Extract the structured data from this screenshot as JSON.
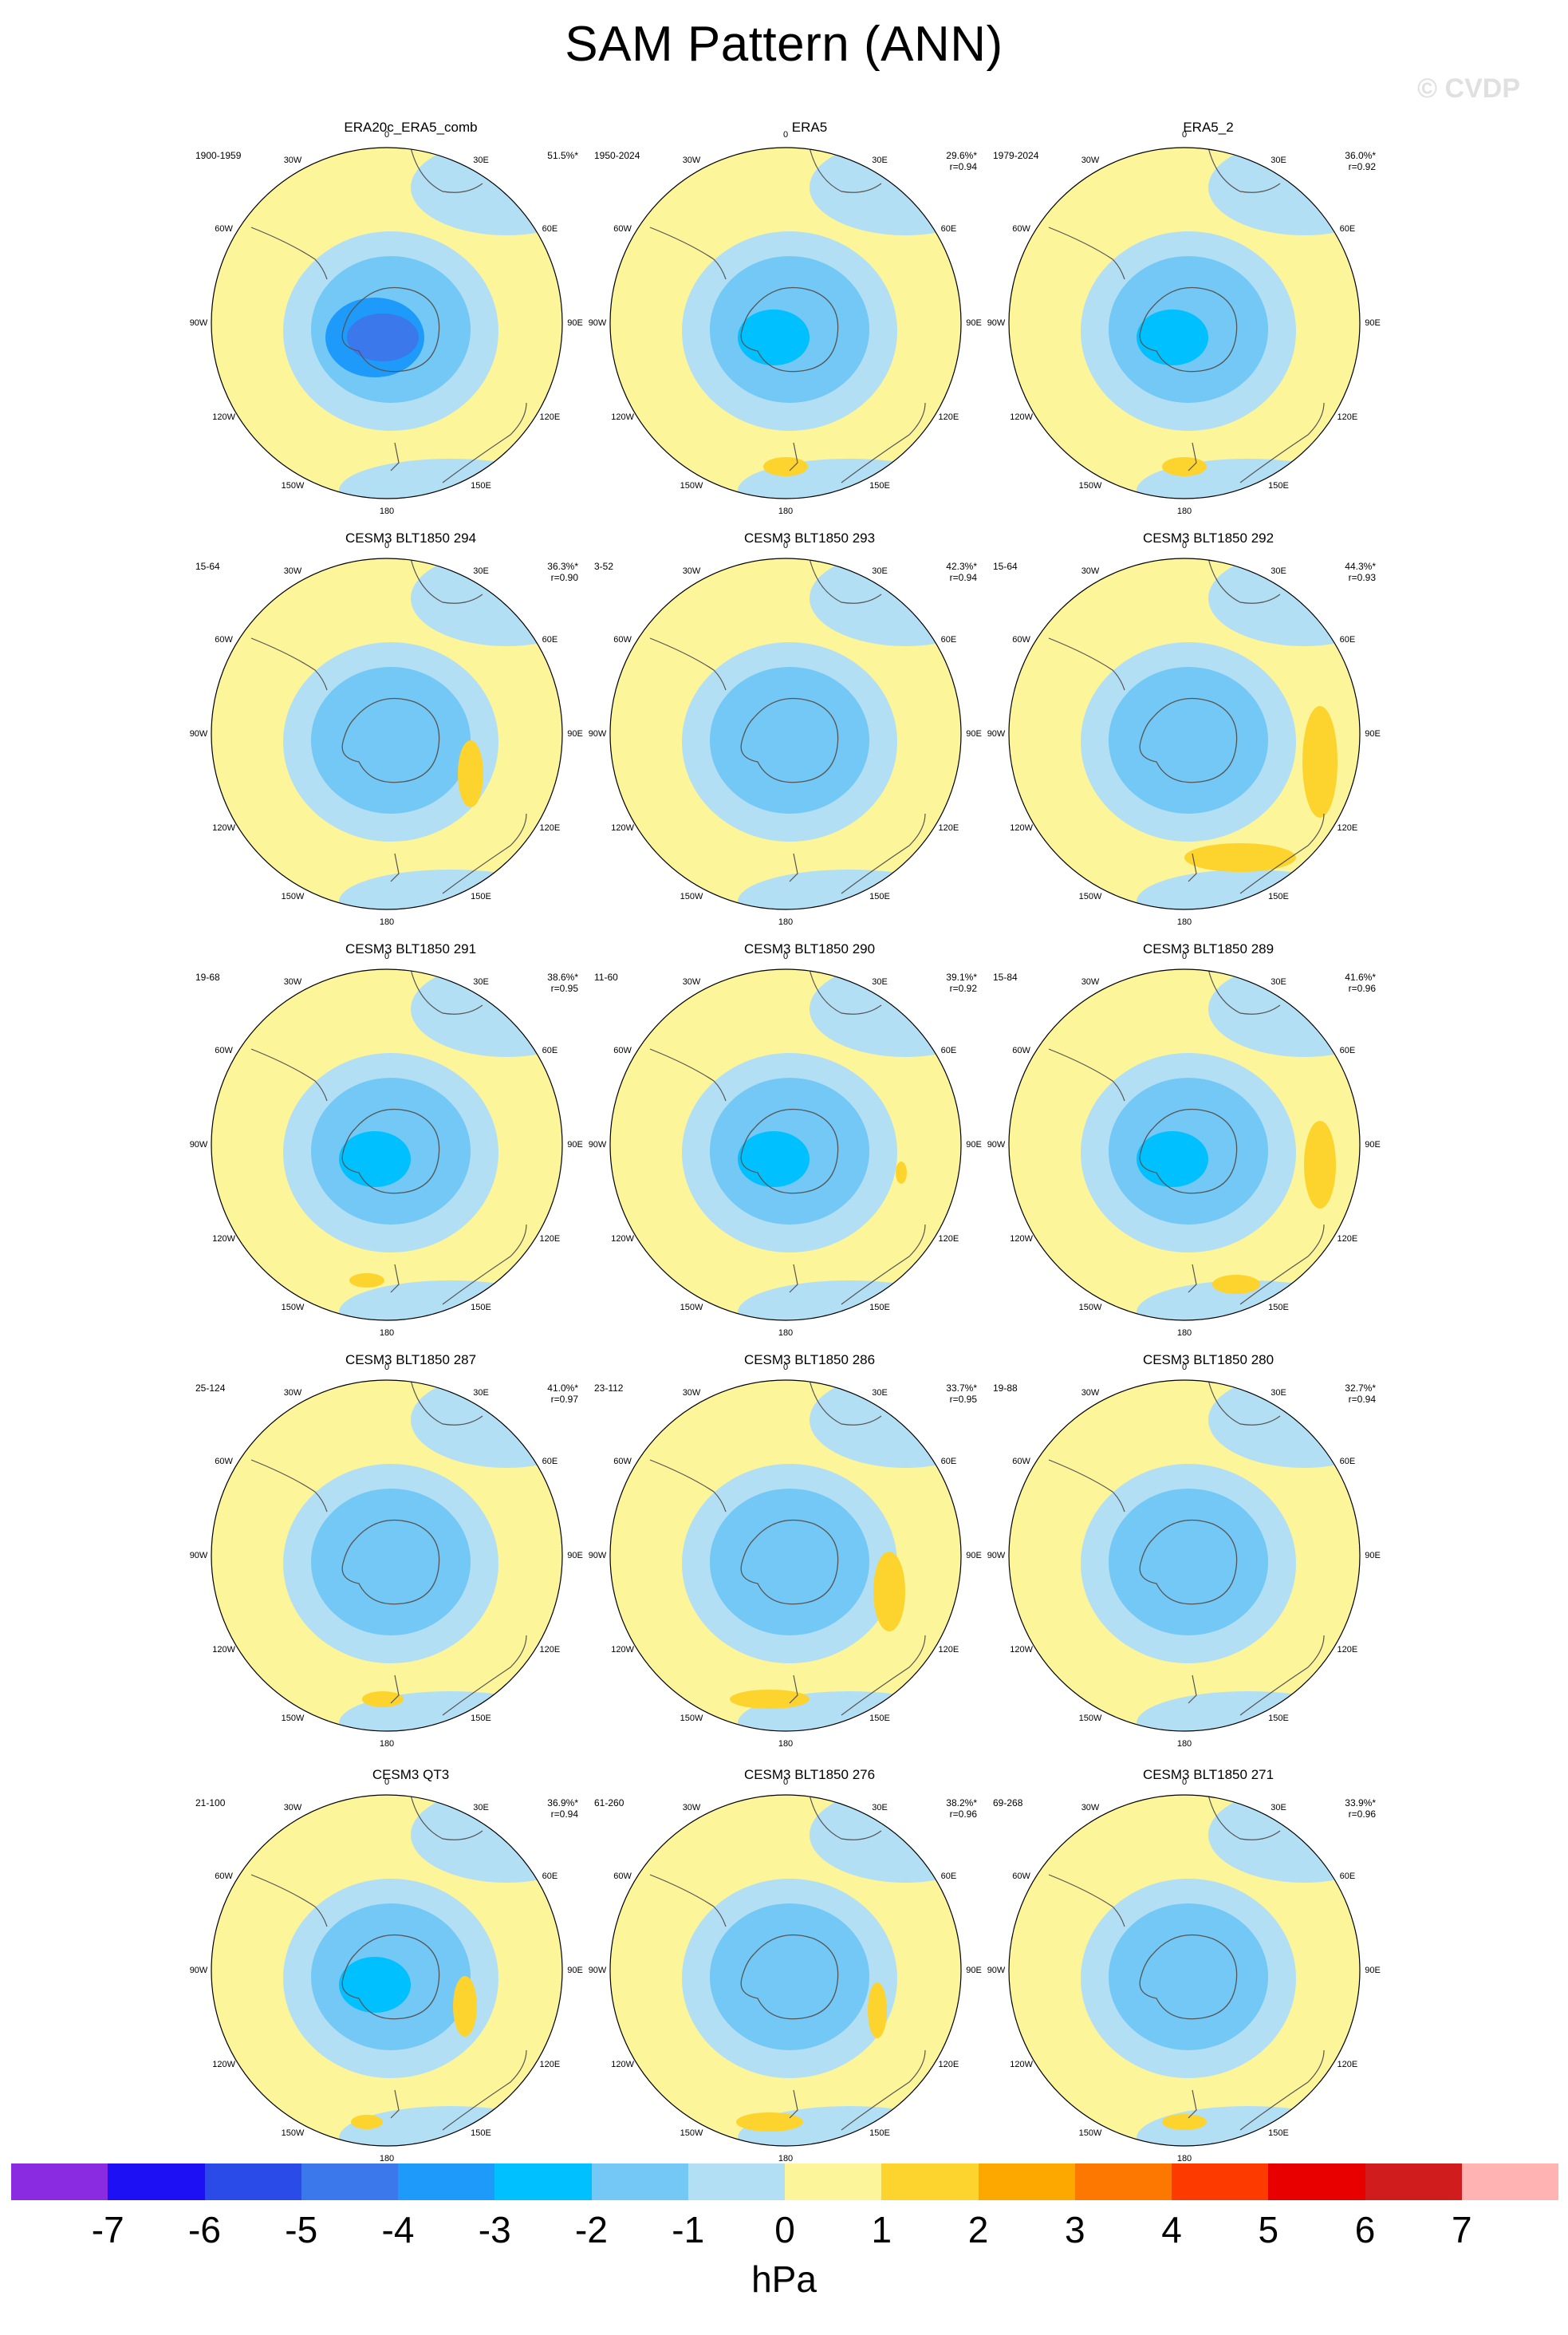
{
  "title": "SAM Pattern (ANN)",
  "watermark": "© CVDP",
  "lon_labels": {
    "l0": "0",
    "l30e": "30E",
    "l60e": "60E",
    "l90e": "90E",
    "l120e": "120E",
    "l150e": "150E",
    "l180": "180",
    "l150w": "150W",
    "l120w": "120W",
    "l90w": "90W",
    "l60w": "60W",
    "l30w": "30W"
  },
  "panels": [
    {
      "title": "ERA20c_ERA5_comb",
      "period": "1900-1959",
      "pct": "51.5%*",
      "r": ""
    },
    {
      "title": "ERA5",
      "period": "1950-2024",
      "pct": "29.6%*",
      "r": "r=0.94"
    },
    {
      "title": "ERA5_2",
      "period": "1979-2024",
      "pct": "36.0%*",
      "r": "r=0.92"
    },
    {
      "title": "CESM3 BLT1850 294",
      "period": "15-64",
      "pct": "36.3%*",
      "r": "r=0.90"
    },
    {
      "title": "CESM3 BLT1850 293",
      "period": "3-52",
      "pct": "42.3%*",
      "r": "r=0.94"
    },
    {
      "title": "CESM3 BLT1850 292",
      "period": "15-64",
      "pct": "44.3%*",
      "r": "r=0.93"
    },
    {
      "title": "CESM3 BLT1850 291",
      "period": "19-68",
      "pct": "38.6%*",
      "r": "r=0.95"
    },
    {
      "title": "CESM3 BLT1850 290",
      "period": "11-60",
      "pct": "39.1%*",
      "r": "r=0.92"
    },
    {
      "title": "CESM3 BLT1850 289",
      "period": "15-84",
      "pct": "41.6%*",
      "r": "r=0.96"
    },
    {
      "title": "CESM3 BLT1850 287",
      "period": "25-124",
      "pct": "41.0%*",
      "r": "r=0.97"
    },
    {
      "title": "CESM3 BLT1850 286",
      "period": "23-112",
      "pct": "33.7%*",
      "r": "r=0.95"
    },
    {
      "title": "CESM3 BLT1850 280",
      "period": "19-88",
      "pct": "32.7%*",
      "r": "r=0.94"
    },
    {
      "title": "CESM3 QT3",
      "period": "21-100",
      "pct": "36.9%*",
      "r": "r=0.94"
    },
    {
      "title": "CESM3 BLT1850 276",
      "period": "61-260",
      "pct": "38.2%*",
      "r": "r=0.96"
    },
    {
      "title": "CESM3 BLT1850 271",
      "period": "69-268",
      "pct": "33.9%*",
      "r": "r=0.96"
    }
  ],
  "colorbar": {
    "colors": [
      "#8a2be2",
      "#1e10f5",
      "#2a4be8",
      "#3a78ec",
      "#1e9bfa",
      "#00c0ff",
      "#73c8f5",
      "#b3dff5",
      "#fdf59a",
      "#fdd32e",
      "#fda800",
      "#fd7800",
      "#fd3a00",
      "#e80000",
      "#d01c1c",
      "#ffb3b3"
    ],
    "ticks": [
      "-7",
      "-6",
      "-5",
      "-4",
      "-3",
      "-2",
      "-1",
      "0",
      "1",
      "2",
      "3",
      "4",
      "5",
      "6",
      "7"
    ],
    "label": "hPa"
  }
}
